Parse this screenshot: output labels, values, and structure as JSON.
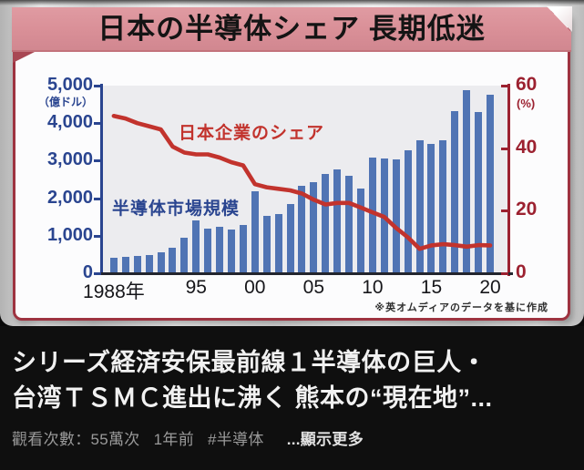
{
  "banner": {
    "title": "日本の半導体シェア 長期低迷"
  },
  "chart_data": {
    "type": "bar+line",
    "title": "日本の半導体シェア 長期低迷",
    "x": [
      1988,
      1989,
      1990,
      1991,
      1992,
      1993,
      1994,
      1995,
      1996,
      1997,
      1998,
      1999,
      2000,
      2001,
      2002,
      2003,
      2004,
      2005,
      2006,
      2007,
      2008,
      2009,
      2010,
      2011,
      2012,
      2013,
      2014,
      2015,
      2016,
      2017,
      2018,
      2019,
      2020
    ],
    "series": [
      {
        "name": "半導体市場規模",
        "type": "bar",
        "axis": "left",
        "unit": "億ドル",
        "values": [
          420,
          450,
          460,
          490,
          550,
          680,
          950,
          1400,
          1190,
          1250,
          1170,
          1280,
          2190,
          1540,
          1580,
          1850,
          2320,
          2420,
          2650,
          2760,
          2610,
          2270,
          3080,
          3060,
          3030,
          3270,
          3540,
          3440,
          3540,
          4320,
          4880,
          4290,
          4760
        ]
      },
      {
        "name": "日本企業のシェア",
        "type": "line",
        "axis": "right",
        "unit": "%",
        "values": [
          50.3,
          49.5,
          48,
          47,
          46,
          40.5,
          38.6,
          38,
          38,
          37,
          35.5,
          34.5,
          28.5,
          27.5,
          27,
          26.5,
          25.5,
          23.5,
          22,
          22.5,
          22.5,
          21,
          19.5,
          18,
          14.5,
          11.5,
          7.8,
          8.9,
          9.3,
          9,
          8.5,
          9,
          8.9
        ]
      }
    ],
    "left_axis": {
      "label": "（億ドル）",
      "ticks": [
        "5,000",
        "4,000",
        "3,000",
        "2,000",
        "1,000",
        "0"
      ],
      "range": [
        0,
        5000
      ]
    },
    "right_axis": {
      "label": "(%)",
      "ticks": [
        "60",
        "40",
        "20",
        "0"
      ],
      "range": [
        0,
        60
      ]
    },
    "x_ticks": [
      {
        "year": 1988,
        "label": "1988年"
      },
      {
        "year": 1995,
        "label": "95"
      },
      {
        "year": 2000,
        "label": "00"
      },
      {
        "year": 2005,
        "label": "05"
      },
      {
        "year": 2010,
        "label": "10"
      },
      {
        "year": 2015,
        "label": "15"
      },
      {
        "year": 2020,
        "label": "20"
      }
    ],
    "grid": false,
    "legend_position": "inline-annotations",
    "source_note": "※英オムディアのデータを基に作成"
  },
  "colors": {
    "bar_blue": "#5074b4",
    "line_red": "#c2332d",
    "axis_navy": "#2a4590",
    "axis_red": "#9c2130",
    "ribbon_pink": "#d98f97",
    "panel_border": "#9e3340"
  },
  "video": {
    "title_line1": "シリーズ経済安保最前線１半導体の巨人・",
    "title_line2": "台湾ＴＳＭＣ進出に沸く 熊本の“現在地”...",
    "views": "觀看次數：55萬次",
    "age": "1年前",
    "hashtag": "#半導体",
    "more": "...顯示更多"
  }
}
